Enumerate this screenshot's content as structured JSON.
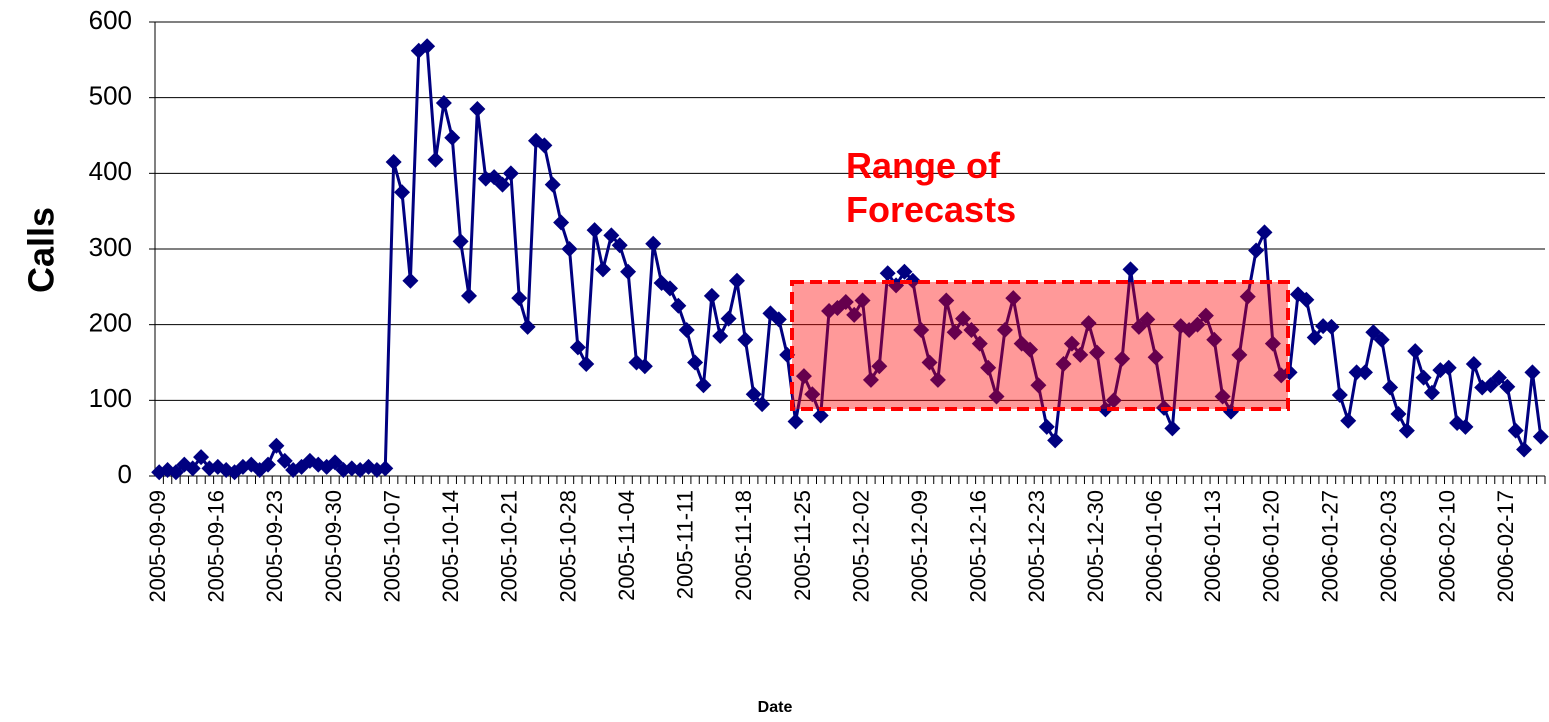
{
  "chart_data": {
    "type": "line",
    "y_label": "Calls",
    "x_label": "Date",
    "annotation": "Range of Forecasts",
    "categories": [
      "2005-09-09",
      null,
      null,
      null,
      null,
      null,
      null,
      "2005-09-16",
      null,
      null,
      null,
      null,
      null,
      null,
      "2005-09-23",
      null,
      null,
      null,
      null,
      null,
      null,
      "2005-09-30",
      null,
      null,
      null,
      null,
      null,
      null,
      "2005-10-07",
      null,
      null,
      null,
      null,
      null,
      null,
      "2005-10-14",
      null,
      null,
      null,
      null,
      null,
      null,
      "2005-10-21",
      null,
      null,
      null,
      null,
      null,
      null,
      "2005-10-28",
      null,
      null,
      null,
      null,
      null,
      null,
      "2005-11-04",
      null,
      null,
      null,
      null,
      null,
      null,
      "2005-11-11",
      null,
      null,
      null,
      null,
      null,
      null,
      "2005-11-18",
      null,
      null,
      null,
      null,
      null,
      null,
      "2005-11-25",
      null,
      null,
      null,
      null,
      null,
      null,
      "2005-12-02",
      null,
      null,
      null,
      null,
      null,
      null,
      "2005-12-09",
      null,
      null,
      null,
      null,
      null,
      null,
      "2005-12-16",
      null,
      null,
      null,
      null,
      null,
      null,
      "2005-12-23",
      null,
      null,
      null,
      null,
      null,
      null,
      "2005-12-30",
      null,
      null,
      null,
      null,
      null,
      null,
      "2006-01-06",
      null,
      null,
      null,
      null,
      null,
      null,
      "2006-01-13",
      null,
      null,
      null,
      null,
      null,
      null,
      "2006-01-20",
      null,
      null,
      null,
      null,
      null,
      null,
      "2006-01-27",
      null,
      null,
      null,
      null,
      null,
      null,
      "2006-02-03",
      null,
      null,
      null,
      null,
      null,
      null,
      "2006-02-10",
      null,
      null,
      null,
      null,
      null,
      null,
      "2006-02-17",
      null,
      null,
      null,
      null
    ],
    "series": [
      {
        "name": "Calls",
        "color": "#000080",
        "values": [
          5,
          8,
          5,
          15,
          10,
          25,
          10,
          12,
          8,
          5,
          12,
          15,
          8,
          15,
          40,
          20,
          8,
          12,
          20,
          15,
          12,
          18,
          8,
          10,
          8,
          12,
          8,
          10,
          415,
          375,
          258,
          562,
          568,
          418,
          493,
          447,
          310,
          238,
          485,
          393,
          395,
          385,
          400,
          235,
          197,
          443,
          437,
          385,
          335,
          300,
          170,
          148,
          325,
          273,
          318,
          305,
          270,
          150,
          145,
          307,
          255,
          248,
          225,
          193,
          150,
          120,
          238,
          185,
          208,
          258,
          180,
          108,
          95,
          215,
          207,
          160,
          72,
          132,
          108,
          80,
          218,
          222,
          230,
          213,
          232,
          127,
          145,
          268,
          252,
          270,
          258,
          193,
          150,
          127,
          232,
          190,
          208,
          193,
          175,
          143,
          105,
          193,
          235,
          175,
          167,
          120,
          65,
          47,
          148,
          175,
          160,
          202,
          163,
          88,
          100,
          155,
          273,
          197,
          207,
          157,
          90,
          63,
          198,
          193,
          200,
          212,
          180,
          105,
          85,
          160,
          237,
          298,
          322,
          175,
          133,
          137,
          240,
          233,
          183,
          198,
          197,
          107,
          73,
          137,
          137,
          190,
          180,
          117,
          82,
          60,
          165,
          130,
          110,
          140,
          143,
          70,
          65,
          148,
          117,
          120,
          130,
          118,
          60,
          35,
          137,
          52
        ]
      }
    ],
    "ylim": [
      0,
      600
    ],
    "yticks": [
      0,
      100,
      200,
      300,
      400,
      500,
      600
    ],
    "grid": true
  }
}
